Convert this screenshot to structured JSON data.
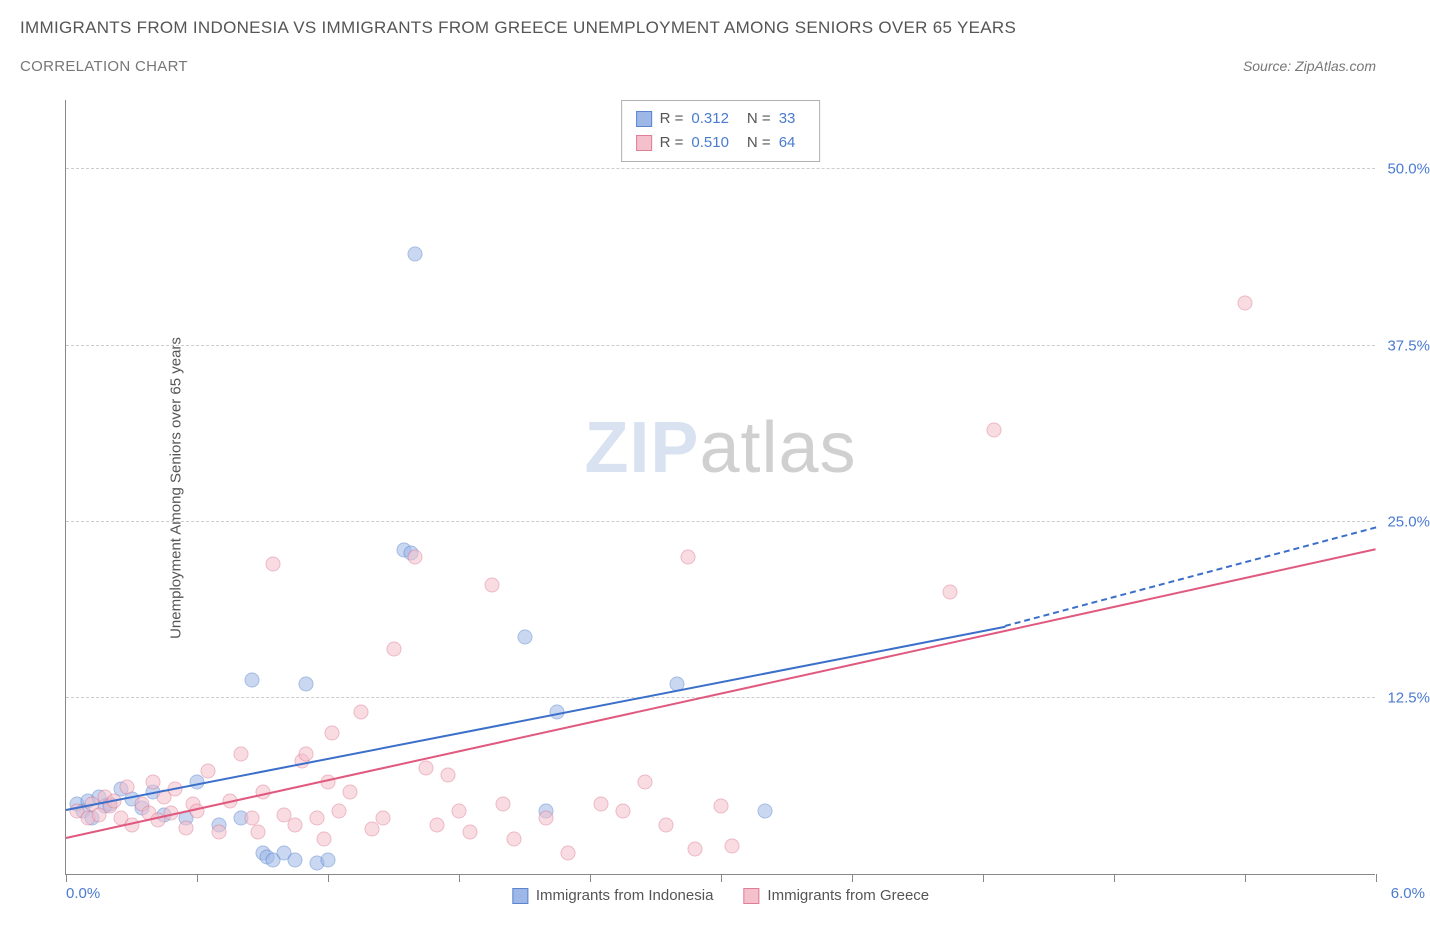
{
  "title": "IMMIGRANTS FROM INDONESIA VS IMMIGRANTS FROM GREECE UNEMPLOYMENT AMONG SENIORS OVER 65 YEARS",
  "subtitle": "CORRELATION CHART",
  "source_label": "Source: ZipAtlas.com",
  "watermark_zip": "ZIP",
  "watermark_atlas": "atlas",
  "ylabel": "Unemployment Among Seniors over 65 years",
  "chart": {
    "type": "scatter",
    "background_color": "#ffffff",
    "grid_color": "#cccccc",
    "axis_color": "#888888",
    "tick_label_color": "#4a7bd0",
    "text_color": "#555555",
    "xlim": [
      0,
      6
    ],
    "ylim": [
      0,
      55
    ],
    "xticks": [
      0,
      0.6,
      1.2,
      1.8,
      2.4,
      3.0,
      3.6,
      4.2,
      4.8,
      5.4,
      6.0
    ],
    "x_min_label": "0.0%",
    "x_max_label": "6.0%",
    "yticks": [
      {
        "value": 12.5,
        "label": "12.5%"
      },
      {
        "value": 25.0,
        "label": "25.0%"
      },
      {
        "value": 37.5,
        "label": "37.5%"
      },
      {
        "value": 50.0,
        "label": "50.0%"
      }
    ],
    "marker_radius": 7.5,
    "marker_opacity": 0.55,
    "marker_border_width": 1.2,
    "series": [
      {
        "name": "Immigrants from Indonesia",
        "fill_color": "#9db8e6",
        "border_color": "#5a84cf",
        "line_color": "#3b6fc9",
        "R": "0.312",
        "N": "33",
        "trend_start": {
          "x": 0.0,
          "y": 4.5
        },
        "trend_end_solid": {
          "x": 4.3,
          "y": 17.5
        },
        "trend_end_dash": {
          "x": 6.0,
          "y": 24.5
        },
        "points": [
          {
            "x": 0.05,
            "y": 5.0
          },
          {
            "x": 0.08,
            "y": 4.5
          },
          {
            "x": 0.1,
            "y": 5.2
          },
          {
            "x": 0.12,
            "y": 4.0
          },
          {
            "x": 0.15,
            "y": 5.5
          },
          {
            "x": 0.18,
            "y": 4.8
          },
          {
            "x": 0.2,
            "y": 5.0
          },
          {
            "x": 0.25,
            "y": 6.0
          },
          {
            "x": 0.3,
            "y": 5.3
          },
          {
            "x": 0.35,
            "y": 4.7
          },
          {
            "x": 0.4,
            "y": 5.8
          },
          {
            "x": 0.45,
            "y": 4.2
          },
          {
            "x": 0.55,
            "y": 4.0
          },
          {
            "x": 0.6,
            "y": 6.5
          },
          {
            "x": 0.7,
            "y": 3.5
          },
          {
            "x": 0.8,
            "y": 4.0
          },
          {
            "x": 0.85,
            "y": 13.8
          },
          {
            "x": 0.9,
            "y": 1.5
          },
          {
            "x": 0.92,
            "y": 1.2
          },
          {
            "x": 0.95,
            "y": 1.0
          },
          {
            "x": 1.0,
            "y": 1.5
          },
          {
            "x": 1.05,
            "y": 1.0
          },
          {
            "x": 1.1,
            "y": 13.5
          },
          {
            "x": 1.15,
            "y": 0.8
          },
          {
            "x": 1.2,
            "y": 1.0
          },
          {
            "x": 1.55,
            "y": 23.0
          },
          {
            "x": 1.58,
            "y": 22.8
          },
          {
            "x": 1.6,
            "y": 44.0
          },
          {
            "x": 2.1,
            "y": 16.8
          },
          {
            "x": 2.25,
            "y": 11.5
          },
          {
            "x": 2.8,
            "y": 13.5
          },
          {
            "x": 3.2,
            "y": 4.5
          },
          {
            "x": 2.2,
            "y": 4.5
          }
        ]
      },
      {
        "name": "Immigrants from Greece",
        "fill_color": "#f4c0cc",
        "border_color": "#e07d97",
        "line_color": "#e05a7f",
        "R": "0.510",
        "N": "64",
        "trend_start": {
          "x": 0.0,
          "y": 2.5
        },
        "trend_end_solid": {
          "x": 6.0,
          "y": 23.0
        },
        "trend_end_dash": null,
        "points": [
          {
            "x": 0.05,
            "y": 4.5
          },
          {
            "x": 0.1,
            "y": 4.0
          },
          {
            "x": 0.12,
            "y": 5.0
          },
          {
            "x": 0.15,
            "y": 4.2
          },
          {
            "x": 0.18,
            "y": 5.5
          },
          {
            "x": 0.2,
            "y": 4.8
          },
          {
            "x": 0.22,
            "y": 5.2
          },
          {
            "x": 0.25,
            "y": 4.0
          },
          {
            "x": 0.28,
            "y": 6.2
          },
          {
            "x": 0.3,
            "y": 3.5
          },
          {
            "x": 0.35,
            "y": 5.0
          },
          {
            "x": 0.38,
            "y": 4.3
          },
          {
            "x": 0.4,
            "y": 6.5
          },
          {
            "x": 0.42,
            "y": 3.8
          },
          {
            "x": 0.45,
            "y": 5.5
          },
          {
            "x": 0.48,
            "y": 4.3
          },
          {
            "x": 0.5,
            "y": 6.0
          },
          {
            "x": 0.55,
            "y": 3.3
          },
          {
            "x": 0.58,
            "y": 5.0
          },
          {
            "x": 0.6,
            "y": 4.5
          },
          {
            "x": 0.65,
            "y": 7.3
          },
          {
            "x": 0.7,
            "y": 3.0
          },
          {
            "x": 0.75,
            "y": 5.2
          },
          {
            "x": 0.8,
            "y": 8.5
          },
          {
            "x": 0.85,
            "y": 4.0
          },
          {
            "x": 0.88,
            "y": 3.0
          },
          {
            "x": 0.9,
            "y": 5.8
          },
          {
            "x": 0.95,
            "y": 22.0
          },
          {
            "x": 1.0,
            "y": 4.2
          },
          {
            "x": 1.05,
            "y": 3.5
          },
          {
            "x": 1.08,
            "y": 8.0
          },
          {
            "x": 1.1,
            "y": 8.5
          },
          {
            "x": 1.15,
            "y": 4.0
          },
          {
            "x": 1.18,
            "y": 2.5
          },
          {
            "x": 1.2,
            "y": 6.5
          },
          {
            "x": 1.22,
            "y": 10.0
          },
          {
            "x": 1.25,
            "y": 4.5
          },
          {
            "x": 1.3,
            "y": 5.8
          },
          {
            "x": 1.35,
            "y": 11.5
          },
          {
            "x": 1.4,
            "y": 3.2
          },
          {
            "x": 1.45,
            "y": 4.0
          },
          {
            "x": 1.5,
            "y": 16.0
          },
          {
            "x": 1.6,
            "y": 22.5
          },
          {
            "x": 1.65,
            "y": 7.5
          },
          {
            "x": 1.7,
            "y": 3.5
          },
          {
            "x": 1.75,
            "y": 7.0
          },
          {
            "x": 1.8,
            "y": 4.5
          },
          {
            "x": 1.85,
            "y": 3.0
          },
          {
            "x": 1.95,
            "y": 20.5
          },
          {
            "x": 2.0,
            "y": 5.0
          },
          {
            "x": 2.05,
            "y": 2.5
          },
          {
            "x": 2.2,
            "y": 4.0
          },
          {
            "x": 2.3,
            "y": 1.5
          },
          {
            "x": 2.45,
            "y": 5.0
          },
          {
            "x": 2.55,
            "y": 4.5
          },
          {
            "x": 2.65,
            "y": 6.5
          },
          {
            "x": 2.75,
            "y": 3.5
          },
          {
            "x": 2.85,
            "y": 22.5
          },
          {
            "x": 2.88,
            "y": 1.8
          },
          {
            "x": 3.0,
            "y": 4.8
          },
          {
            "x": 3.05,
            "y": 2.0
          },
          {
            "x": 4.05,
            "y": 20.0
          },
          {
            "x": 4.25,
            "y": 31.5
          },
          {
            "x": 5.4,
            "y": 40.5
          }
        ]
      }
    ]
  }
}
